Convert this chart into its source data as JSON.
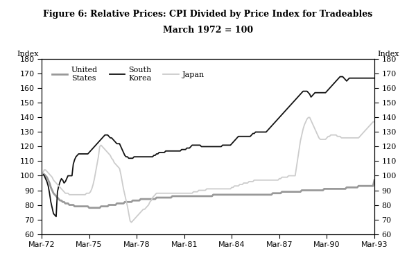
{
  "title_line1": "Figure 6: Relative Prices: CPI Divided by Price Index for Tradeables",
  "title_line2": "March 1972 = 100",
  "ylabel_left": "Index",
  "ylabel_right": "Index",
  "ylim": [
    60,
    180
  ],
  "yticks": [
    60,
    70,
    80,
    90,
    100,
    110,
    120,
    130,
    140,
    150,
    160,
    170,
    180
  ],
  "xtick_labels": [
    "Mar-72",
    "Mar-75",
    "Mar-78",
    "Mar-81",
    "Mar-84",
    "Mar-87",
    "Mar-90",
    "Mar-93"
  ],
  "xtick_positions": [
    0,
    36,
    72,
    108,
    144,
    180,
    216,
    252
  ],
  "n_points": 253,
  "series": {
    "United States": {
      "color": "#999999",
      "linewidth": 2.0,
      "values": [
        100,
        101,
        101,
        100,
        99,
        97,
        95,
        92,
        90,
        88,
        87,
        86,
        85,
        84,
        83,
        83,
        82,
        82,
        81,
        81,
        81,
        80,
        80,
        80,
        80,
        79,
        79,
        79,
        79,
        79,
        79,
        79,
        79,
        79,
        79,
        79,
        78,
        78,
        78,
        78,
        78,
        78,
        78,
        78,
        78,
        79,
        79,
        79,
        79,
        79,
        79,
        80,
        80,
        80,
        80,
        80,
        80,
        81,
        81,
        81,
        81,
        81,
        81,
        82,
        82,
        82,
        82,
        82,
        82,
        83,
        83,
        83,
        83,
        83,
        83,
        84,
        84,
        84,
        84,
        84,
        84,
        84,
        84,
        84,
        84,
        84,
        84,
        85,
        85,
        85,
        85,
        85,
        85,
        85,
        85,
        85,
        85,
        85,
        85,
        86,
        86,
        86,
        86,
        86,
        86,
        86,
        86,
        86,
        86,
        86,
        86,
        86,
        86,
        86,
        86,
        86,
        86,
        86,
        86,
        86,
        86,
        86,
        86,
        86,
        86,
        86,
        86,
        86,
        86,
        86,
        87,
        87,
        87,
        87,
        87,
        87,
        87,
        87,
        87,
        87,
        87,
        87,
        87,
        87,
        87,
        87,
        87,
        87,
        87,
        87,
        87,
        87,
        87,
        87,
        87,
        87,
        87,
        87,
        87,
        87,
        87,
        87,
        87,
        87,
        87,
        87,
        87,
        87,
        87,
        87,
        87,
        87,
        87,
        87,
        87,
        88,
        88,
        88,
        88,
        88,
        88,
        88,
        89,
        89,
        89,
        89,
        89,
        89,
        89,
        89,
        89,
        89,
        89,
        89,
        89,
        89,
        89,
        90,
        90,
        90,
        90,
        90,
        90,
        90,
        90,
        90,
        90,
        90,
        90,
        90,
        90,
        90,
        90,
        90,
        91,
        91,
        91,
        91,
        91,
        91,
        91,
        91,
        91,
        91,
        91,
        91,
        91,
        91,
        91,
        91,
        91,
        92,
        92,
        92,
        92,
        92,
        92,
        92,
        92,
        92,
        93,
        93,
        93,
        93,
        93,
        93,
        93,
        93,
        93,
        93,
        93,
        93,
        97
      ]
    },
    "South Korea": {
      "color": "#111111",
      "linewidth": 1.3,
      "values": [
        100,
        101,
        100,
        98,
        96,
        93,
        88,
        82,
        78,
        74,
        73,
        72,
        89,
        93,
        96,
        98,
        97,
        95,
        96,
        98,
        100,
        100,
        100,
        100,
        108,
        111,
        113,
        114,
        115,
        115,
        115,
        115,
        115,
        115,
        115,
        115,
        116,
        117,
        118,
        119,
        120,
        121,
        122,
        123,
        124,
        125,
        126,
        127,
        128,
        128,
        128,
        127,
        126,
        126,
        125,
        124,
        123,
        122,
        122,
        122,
        120,
        118,
        116,
        114,
        113,
        113,
        112,
        112,
        112,
        112,
        113,
        113,
        113,
        113,
        113,
        113,
        113,
        113,
        113,
        113,
        113,
        113,
        113,
        113,
        113,
        114,
        114,
        115,
        115,
        116,
        116,
        116,
        116,
        116,
        117,
        117,
        117,
        117,
        117,
        117,
        117,
        117,
        117,
        117,
        117,
        117,
        118,
        118,
        118,
        118,
        119,
        119,
        119,
        120,
        121,
        121,
        121,
        121,
        121,
        121,
        121,
        120,
        120,
        120,
        120,
        120,
        120,
        120,
        120,
        120,
        120,
        120,
        120,
        120,
        120,
        120,
        120,
        121,
        121,
        121,
        121,
        121,
        121,
        121,
        122,
        123,
        124,
        125,
        126,
        127,
        127,
        127,
        127,
        127,
        127,
        127,
        127,
        127,
        127,
        128,
        129,
        129,
        130,
        130,
        130,
        130,
        130,
        130,
        130,
        130,
        130,
        131,
        132,
        133,
        134,
        135,
        136,
        137,
        138,
        139,
        140,
        141,
        142,
        143,
        144,
        145,
        146,
        147,
        148,
        149,
        150,
        151,
        152,
        153,
        154,
        155,
        156,
        157,
        158,
        158,
        158,
        158,
        157,
        156,
        154,
        155,
        156,
        157,
        157,
        157,
        157,
        157,
        157,
        157,
        157,
        157,
        158,
        159,
        160,
        161,
        162,
        163,
        164,
        165,
        166,
        167,
        168,
        168,
        168,
        167,
        166,
        165,
        166,
        167,
        167,
        167,
        167,
        167,
        167,
        167,
        167,
        167,
        167,
        167,
        167,
        167,
        167,
        167,
        167,
        167,
        167,
        167,
        167
      ]
    },
    "Japan": {
      "color": "#cccccc",
      "linewidth": 1.3,
      "values": [
        100,
        102,
        104,
        104,
        103,
        102,
        101,
        100,
        99,
        97,
        96,
        95,
        94,
        93,
        92,
        91,
        90,
        89,
        88,
        88,
        88,
        87,
        87,
        87,
        87,
        87,
        87,
        87,
        87,
        87,
        87,
        87,
        87,
        87,
        88,
        88,
        88,
        89,
        91,
        94,
        98,
        103,
        108,
        113,
        120,
        121,
        120,
        119,
        118,
        117,
        116,
        115,
        114,
        112,
        111,
        109,
        108,
        107,
        106,
        105,
        101,
        96,
        91,
        87,
        83,
        79,
        74,
        69,
        68,
        69,
        70,
        71,
        72,
        73,
        74,
        75,
        76,
        77,
        77,
        78,
        79,
        80,
        82,
        83,
        85,
        86,
        87,
        88,
        88,
        88,
        88,
        88,
        88,
        88,
        88,
        88,
        88,
        88,
        88,
        88,
        88,
        88,
        88,
        88,
        88,
        88,
        88,
        88,
        88,
        88,
        88,
        88,
        88,
        88,
        88,
        89,
        89,
        89,
        89,
        90,
        90,
        90,
        90,
        90,
        90,
        91,
        91,
        91,
        91,
        91,
        91,
        91,
        91,
        91,
        91,
        91,
        91,
        91,
        91,
        91,
        91,
        91,
        91,
        91,
        92,
        92,
        93,
        93,
        93,
        93,
        94,
        94,
        94,
        95,
        95,
        95,
        95,
        96,
        96,
        96,
        96,
        97,
        97,
        97,
        97,
        97,
        97,
        97,
        97,
        97,
        97,
        97,
        97,
        97,
        97,
        97,
        97,
        97,
        97,
        97,
        98,
        98,
        99,
        99,
        99,
        99,
        99,
        100,
        100,
        100,
        100,
        100,
        100,
        106,
        112,
        118,
        124,
        128,
        132,
        135,
        137,
        139,
        140,
        140,
        138,
        136,
        134,
        132,
        130,
        128,
        126,
        125,
        125,
        125,
        125,
        125,
        126,
        127,
        127,
        128,
        128,
        128,
        128,
        128,
        127,
        127,
        127,
        126,
        126,
        126,
        126,
        126,
        126,
        126,
        126,
        126,
        126,
        126,
        126,
        126,
        126,
        127,
        128,
        129,
        130,
        131,
        132,
        133,
        134,
        135,
        136,
        137,
        137
      ]
    }
  }
}
